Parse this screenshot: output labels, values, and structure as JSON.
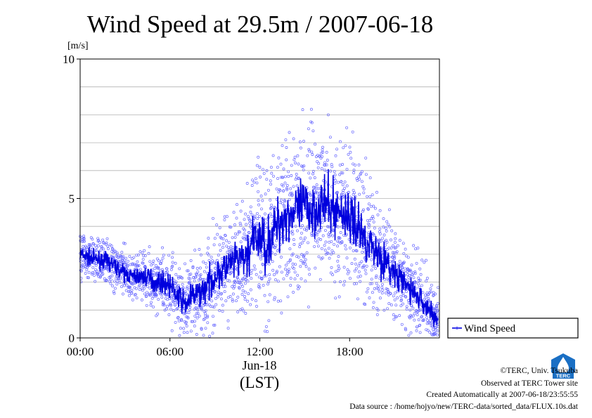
{
  "chart_data": {
    "type": "scatter",
    "title": "Wind Speed at 29.5m / 2007-06-18",
    "ylabel": "[m/s]",
    "xlabel": "(LST)",
    "date_label": "Jun-18",
    "ylim": [
      0,
      10
    ],
    "xlim": [
      0,
      24
    ],
    "x_unit": "hour",
    "yticks": [
      "0",
      "5",
      "10"
    ],
    "xticks": [
      {
        "value": 0,
        "label": "00:00"
      },
      {
        "value": 6,
        "label": "06:00"
      },
      {
        "value": 12,
        "label": "12:00"
      },
      {
        "value": 18,
        "label": "18:00"
      }
    ],
    "grid": true,
    "legend": "outside-right-bottom",
    "series": [
      {
        "name": "Wind Speed",
        "style": "line+scatter",
        "line_color": "#0000dd",
        "marker_color": "#6a6aff",
        "mean_profile": [
          {
            "x": 0.0,
            "y": 3.0
          },
          {
            "x": 0.5,
            "y": 2.9
          },
          {
            "x": 1.0,
            "y": 2.8
          },
          {
            "x": 1.5,
            "y": 2.8
          },
          {
            "x": 2.0,
            "y": 2.7
          },
          {
            "x": 2.5,
            "y": 2.5
          },
          {
            "x": 3.0,
            "y": 2.3
          },
          {
            "x": 3.5,
            "y": 2.2
          },
          {
            "x": 4.0,
            "y": 2.2
          },
          {
            "x": 4.5,
            "y": 2.2
          },
          {
            "x": 5.0,
            "y": 2.0
          },
          {
            "x": 5.5,
            "y": 2.0
          },
          {
            "x": 6.0,
            "y": 1.9
          },
          {
            "x": 6.5,
            "y": 1.5
          },
          {
            "x": 7.0,
            "y": 1.2
          },
          {
            "x": 7.5,
            "y": 1.5
          },
          {
            "x": 8.0,
            "y": 1.6
          },
          {
            "x": 8.5,
            "y": 1.9
          },
          {
            "x": 9.0,
            "y": 2.2
          },
          {
            "x": 9.5,
            "y": 2.4
          },
          {
            "x": 10.0,
            "y": 2.6
          },
          {
            "x": 10.5,
            "y": 2.8
          },
          {
            "x": 11.0,
            "y": 2.8
          },
          {
            "x": 11.5,
            "y": 3.4
          },
          {
            "x": 12.0,
            "y": 3.6
          },
          {
            "x": 12.5,
            "y": 3.3
          },
          {
            "x": 13.0,
            "y": 3.9
          },
          {
            "x": 13.5,
            "y": 4.3
          },
          {
            "x": 14.0,
            "y": 4.5
          },
          {
            "x": 14.5,
            "y": 4.5
          },
          {
            "x": 15.0,
            "y": 4.7
          },
          {
            "x": 15.5,
            "y": 4.6
          },
          {
            "x": 16.0,
            "y": 4.8
          },
          {
            "x": 16.5,
            "y": 4.7
          },
          {
            "x": 17.0,
            "y": 4.6
          },
          {
            "x": 17.5,
            "y": 4.5
          },
          {
            "x": 18.0,
            "y": 4.3
          },
          {
            "x": 18.5,
            "y": 4.0
          },
          {
            "x": 19.0,
            "y": 3.6
          },
          {
            "x": 19.5,
            "y": 3.3
          },
          {
            "x": 20.0,
            "y": 3.0
          },
          {
            "x": 20.5,
            "y": 2.6
          },
          {
            "x": 21.0,
            "y": 2.3
          },
          {
            "x": 21.5,
            "y": 2.0
          },
          {
            "x": 22.0,
            "y": 1.8
          },
          {
            "x": 22.5,
            "y": 1.5
          },
          {
            "x": 23.0,
            "y": 1.2
          },
          {
            "x": 23.5,
            "y": 0.9
          },
          {
            "x": 23.9,
            "y": 0.6
          }
        ],
        "spread_profile": [
          {
            "x": 0.0,
            "y": 0.4
          },
          {
            "x": 3.0,
            "y": 0.4
          },
          {
            "x": 6.0,
            "y": 0.55
          },
          {
            "x": 9.0,
            "y": 0.8
          },
          {
            "x": 11.0,
            "y": 1.0
          },
          {
            "x": 12.0,
            "y": 1.35
          },
          {
            "x": 15.0,
            "y": 1.45
          },
          {
            "x": 18.0,
            "y": 1.3
          },
          {
            "x": 21.0,
            "y": 0.8
          },
          {
            "x": 24.0,
            "y": 0.5
          }
        ],
        "sample_interval_min": 1.5
      }
    ]
  },
  "footer": {
    "copyright": "©TERC, Univ. Tsukuba",
    "observed": "Observed at TERC Tower site",
    "created": "Created Automatically at 2007-06-18/23:55:55",
    "source": "Data source : /home/hojyo/new/TERC-data/sorted_data/FLUX.10s.dat"
  },
  "logo": {
    "text": "TERC",
    "color": "#1a6fc4"
  }
}
